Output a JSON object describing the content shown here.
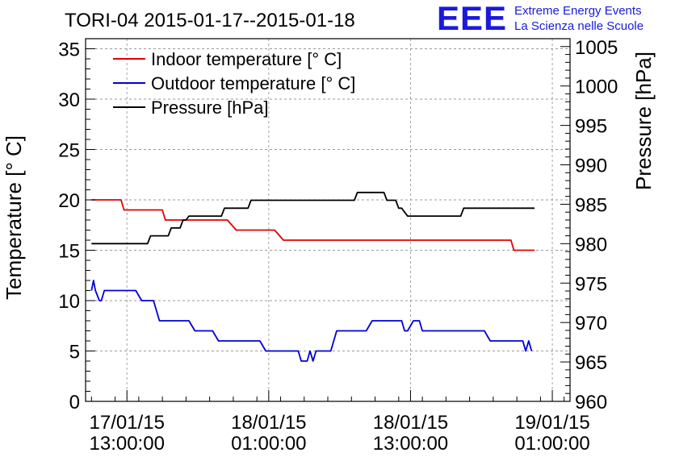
{
  "chart_data": {
    "type": "line",
    "title": "TORI-04 2015-01-17--2015-01-18",
    "ylabel": "Temperature [° C]",
    "y2label": "Pressure [hPa]",
    "ylim": [
      0,
      36
    ],
    "y2lim": [
      960,
      1006
    ],
    "yticks": [
      0,
      5,
      10,
      15,
      20,
      25,
      30,
      35
    ],
    "y2ticks": [
      960,
      965,
      970,
      975,
      980,
      985,
      990,
      995,
      1000,
      1005
    ],
    "xlim": [
      "2015-01-17 09:30",
      "2015-01-19 02:30"
    ],
    "xticks": [
      {
        "line1": "17/01/15",
        "line2": "13:00:00",
        "t": "2015-01-17 13:00"
      },
      {
        "line1": "18/01/15",
        "line2": "01:00:00",
        "t": "2015-01-18 01:00"
      },
      {
        "line1": "18/01/15",
        "line2": "13:00:00",
        "t": "2015-01-18 13:00"
      },
      {
        "line1": "19/01/15",
        "line2": "01:00:00",
        "t": "2015-01-19 01:00"
      }
    ],
    "grid": true,
    "legend_position": "top-left",
    "series": [
      {
        "name": "Indoor temperature [° C]",
        "color": "#e00000",
        "axis": "left",
        "points": [
          [
            "2015-01-17 10:00",
            20
          ],
          [
            "2015-01-17 12:30",
            20
          ],
          [
            "2015-01-17 12:45",
            19
          ],
          [
            "2015-01-17 14:30",
            19
          ],
          [
            "2015-01-17 16:00",
            19
          ],
          [
            "2015-01-17 16:15",
            18
          ],
          [
            "2015-01-17 21:30",
            18
          ],
          [
            "2015-01-17 22:15",
            17
          ],
          [
            "2015-01-18 01:30",
            17
          ],
          [
            "2015-01-18 02:15",
            16
          ],
          [
            "2015-01-18 21:30",
            16
          ],
          [
            "2015-01-18 21:45",
            15
          ],
          [
            "2015-01-18 23:30",
            15
          ]
        ]
      },
      {
        "name": "Outdoor temperature [° C]",
        "color": "#0000d6",
        "axis": "left",
        "points": [
          [
            "2015-01-17 10:00",
            11
          ],
          [
            "2015-01-17 10:10",
            12
          ],
          [
            "2015-01-17 10:20",
            11
          ],
          [
            "2015-01-17 10:40",
            10
          ],
          [
            "2015-01-17 10:50",
            10
          ],
          [
            "2015-01-17 11:05",
            11
          ],
          [
            "2015-01-17 13:45",
            11
          ],
          [
            "2015-01-17 14:15",
            10
          ],
          [
            "2015-01-17 15:15",
            10
          ],
          [
            "2015-01-17 15:45",
            8
          ],
          [
            "2015-01-17 18:15",
            8
          ],
          [
            "2015-01-17 18:45",
            7
          ],
          [
            "2015-01-17 20:15",
            7
          ],
          [
            "2015-01-17 20:45",
            6
          ],
          [
            "2015-01-18 00:15",
            6
          ],
          [
            "2015-01-18 00:45",
            5
          ],
          [
            "2015-01-18 03:30",
            5
          ],
          [
            "2015-01-18 03:45",
            4
          ],
          [
            "2015-01-18 04:15",
            4
          ],
          [
            "2015-01-18 04:30",
            5
          ],
          [
            "2015-01-18 04:45",
            4
          ],
          [
            "2015-01-18 05:00",
            5
          ],
          [
            "2015-01-18 06:15",
            5
          ],
          [
            "2015-01-18 06:45",
            7
          ],
          [
            "2015-01-18 09:15",
            7
          ],
          [
            "2015-01-18 09:45",
            8
          ],
          [
            "2015-01-18 12:15",
            8
          ],
          [
            "2015-01-18 12:30",
            7
          ],
          [
            "2015-01-18 12:45",
            7
          ],
          [
            "2015-01-18 13:15",
            8
          ],
          [
            "2015-01-18 13:45",
            8
          ],
          [
            "2015-01-18 14:00",
            7
          ],
          [
            "2015-01-18 19:15",
            7
          ],
          [
            "2015-01-18 19:45",
            6
          ],
          [
            "2015-01-18 22:30",
            6
          ],
          [
            "2015-01-18 22:45",
            5
          ],
          [
            "2015-01-18 23:00",
            6
          ],
          [
            "2015-01-18 23:15",
            5
          ]
        ]
      },
      {
        "name": "Pressure [hPa]",
        "color": "#000000",
        "axis": "right",
        "points": [
          [
            "2015-01-17 10:00",
            980
          ],
          [
            "2015-01-17 14:45",
            980
          ],
          [
            "2015-01-17 15:00",
            981
          ],
          [
            "2015-01-17 16:30",
            981
          ],
          [
            "2015-01-17 16:45",
            982
          ],
          [
            "2015-01-17 17:30",
            982
          ],
          [
            "2015-01-17 17:45",
            983
          ],
          [
            "2015-01-17 18:00",
            983
          ],
          [
            "2015-01-17 18:15",
            983.5
          ],
          [
            "2015-01-17 21:00",
            983.5
          ],
          [
            "2015-01-17 21:15",
            984.5
          ],
          [
            "2015-01-17 23:15",
            984.5
          ],
          [
            "2015-01-17 23:30",
            985.5
          ],
          [
            "2015-01-18 08:15",
            985.5
          ],
          [
            "2015-01-18 08:30",
            986.5
          ],
          [
            "2015-01-18 10:45",
            986.5
          ],
          [
            "2015-01-18 11:00",
            985.5
          ],
          [
            "2015-01-18 11:45",
            985.5
          ],
          [
            "2015-01-18 12:00",
            984.5
          ],
          [
            "2015-01-18 12:15",
            984.5
          ],
          [
            "2015-01-18 12:30",
            984
          ],
          [
            "2015-01-18 12:45",
            983.5
          ],
          [
            "2015-01-18 17:15",
            983.5
          ],
          [
            "2015-01-18 17:30",
            984.5
          ],
          [
            "2015-01-18 23:30",
            984.5
          ]
        ]
      }
    ]
  },
  "logo": {
    "letters": "EEE",
    "line1": "Extreme Energy Events",
    "line2": "La Scienza nelle Scuole"
  }
}
